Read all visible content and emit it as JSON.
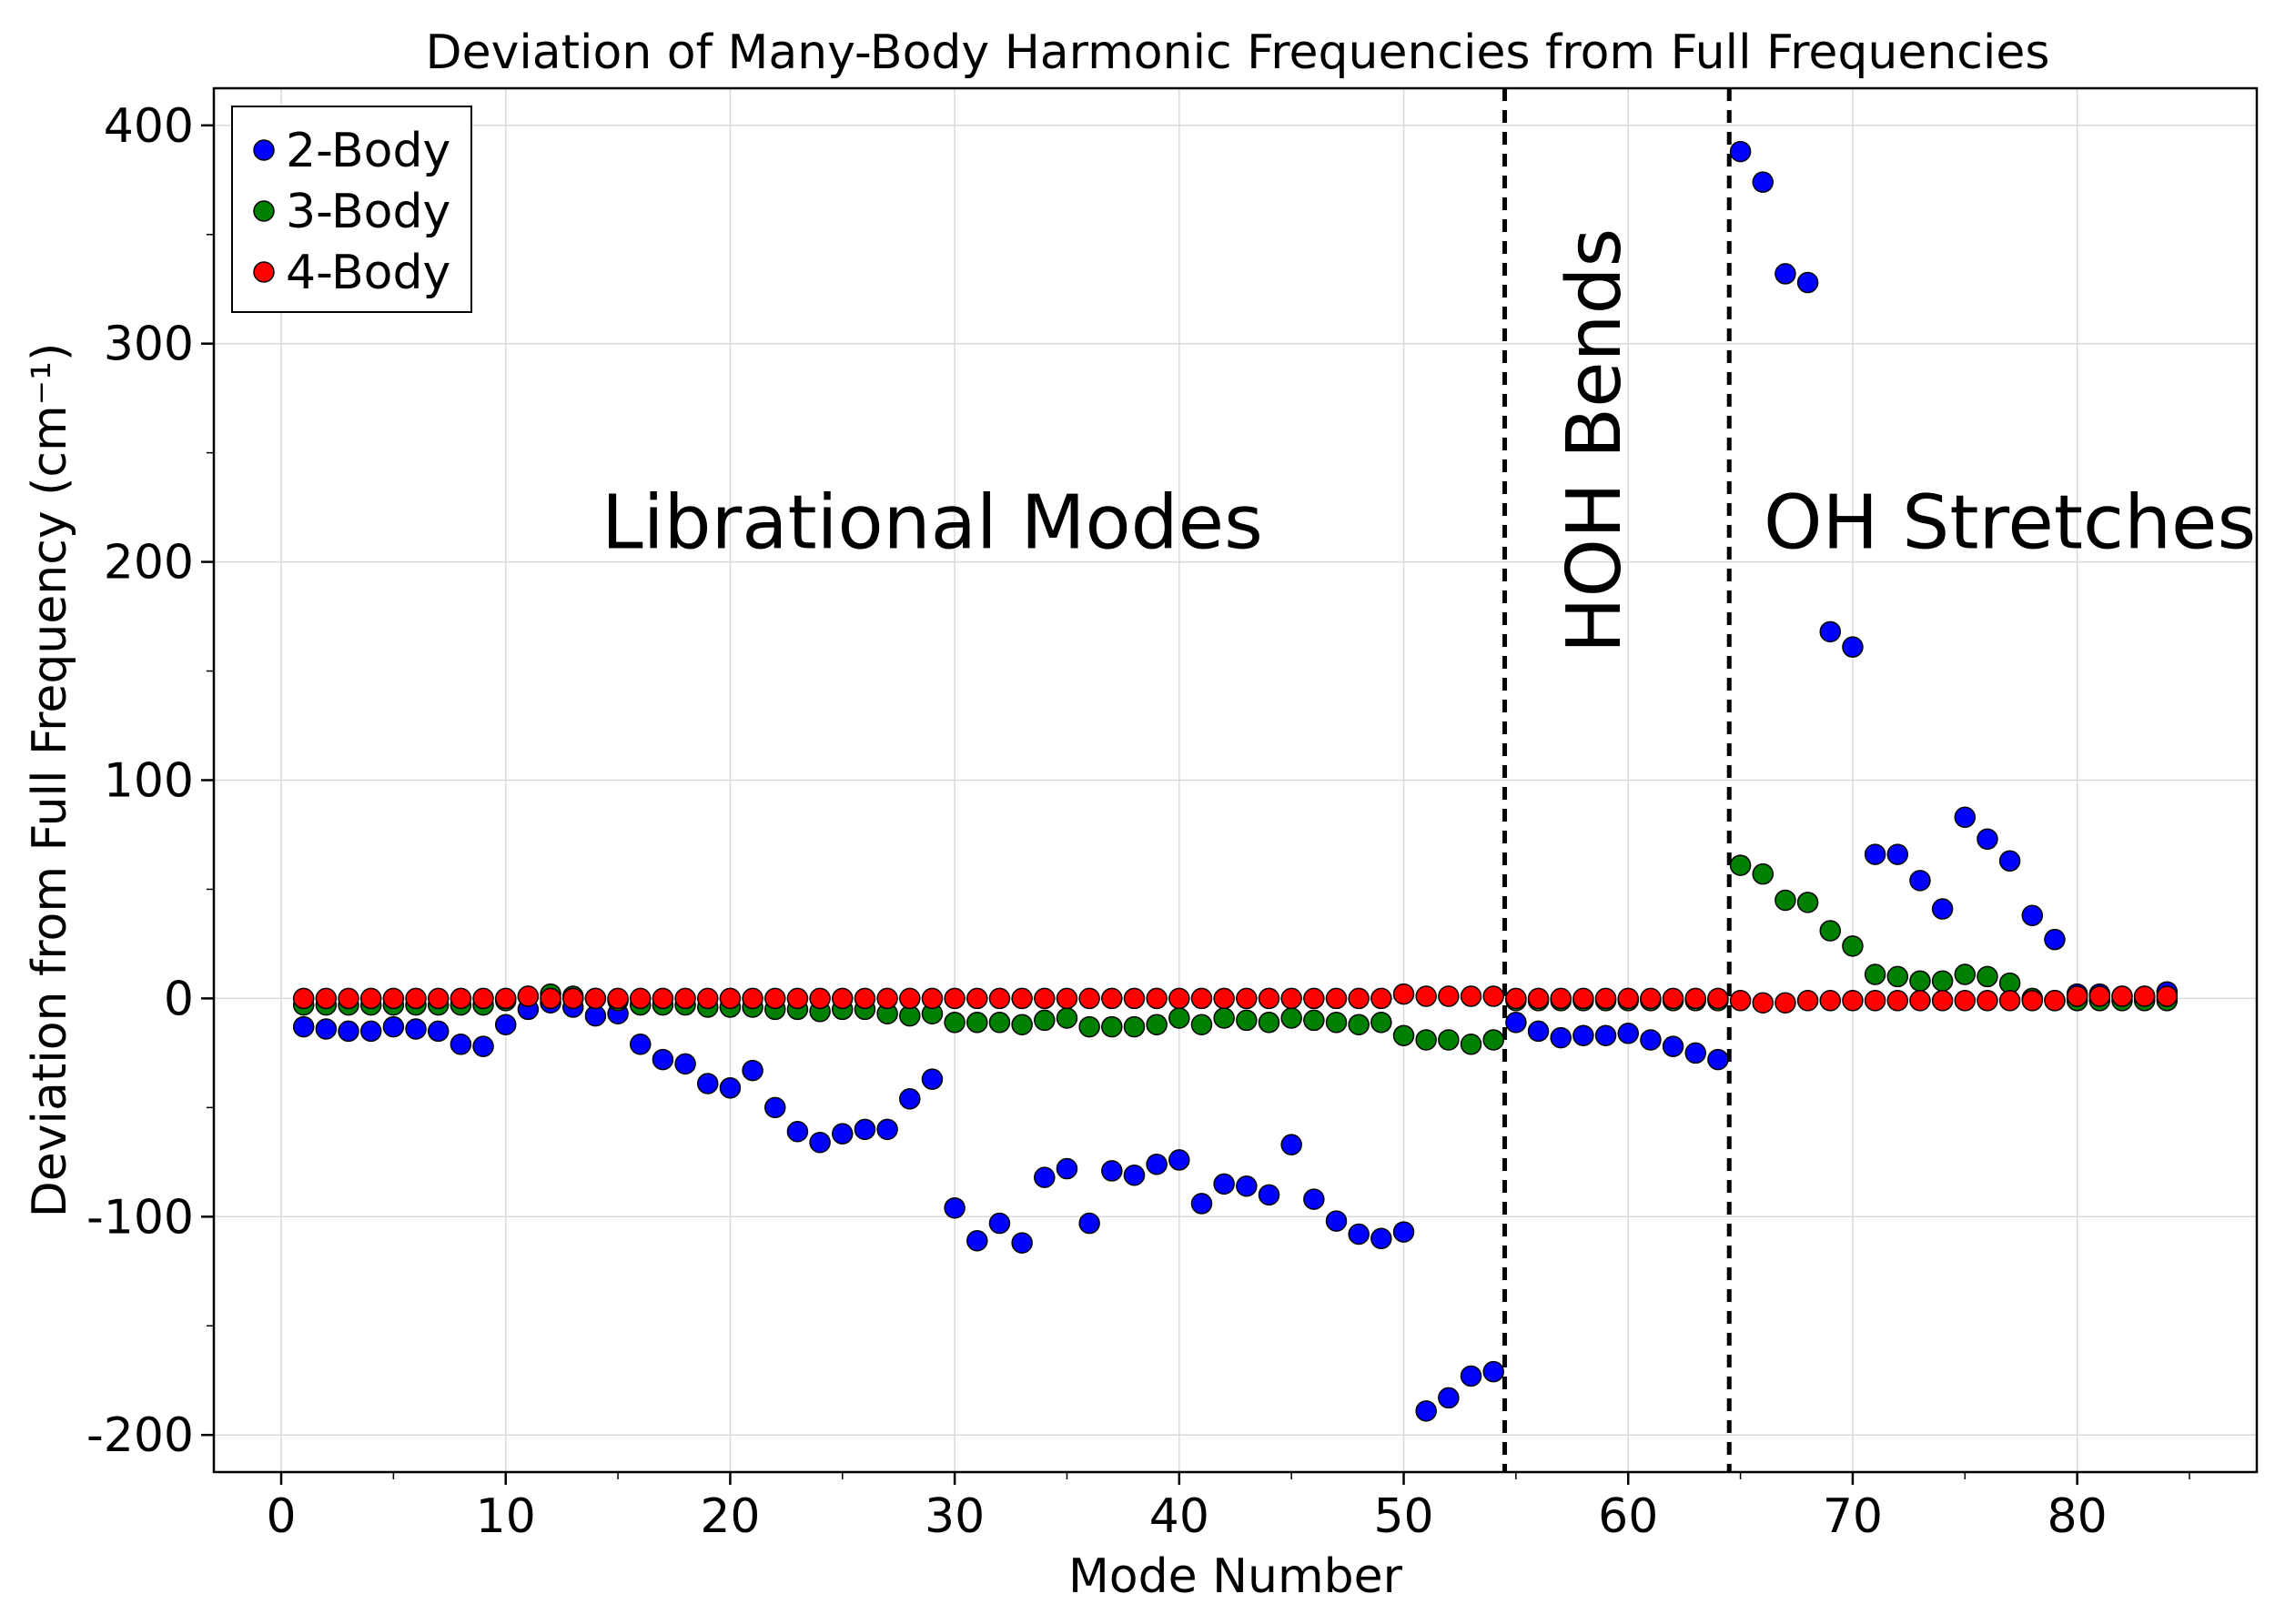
{
  "chart_data": {
    "type": "scatter",
    "title": "Deviation of Many-Body Harmonic Frequencies from Full Frequencies",
    "xlabel": "Mode Number",
    "ylabel": "Deviation from Full Frequency (cm⁻¹)",
    "xlim": [
      -3,
      88
    ],
    "ylim": [
      -217,
      417
    ],
    "xticks": [
      0,
      10,
      20,
      30,
      40,
      50,
      60,
      70,
      80
    ],
    "yticks": [
      -200,
      -100,
      0,
      100,
      200,
      300,
      400
    ],
    "xtick_labels": [
      "0",
      "10",
      "20",
      "30",
      "40",
      "50",
      "60",
      "70",
      "80"
    ],
    "ytick_labels": [
      "-200",
      "-100",
      "0",
      "100",
      "200",
      "300",
      "400"
    ],
    "grid": true,
    "legend_position": "top-left",
    "vlines": [
      54.5,
      64.5
    ],
    "annotations": [
      {
        "text": "Librational Modes",
        "x": 29,
        "y": 218,
        "rotation": 0
      },
      {
        "text": "HOH Bends",
        "x": 58.5,
        "y": 218,
        "rotation": -90
      },
      {
        "text": "OH Stretches",
        "x": 77,
        "y": 218,
        "rotation": 0
      }
    ],
    "series": [
      {
        "name": "2-Body",
        "color": "#0000ff",
        "x": [
          1,
          2,
          3,
          4,
          5,
          6,
          7,
          8,
          9,
          10,
          11,
          12,
          13,
          14,
          15,
          16,
          17,
          18,
          19,
          20,
          21,
          22,
          23,
          24,
          25,
          26,
          27,
          28,
          29,
          30,
          31,
          32,
          33,
          34,
          35,
          36,
          37,
          38,
          39,
          40,
          41,
          42,
          43,
          44,
          45,
          46,
          47,
          48,
          49,
          50,
          51,
          52,
          53,
          54,
          55,
          56,
          57,
          58,
          59,
          60,
          61,
          62,
          63,
          64,
          65,
          66,
          67,
          68,
          69,
          70,
          71,
          72,
          73,
          74,
          75,
          76,
          77,
          78,
          79,
          80,
          81,
          82,
          83,
          84
        ],
        "y": [
          -13,
          -14,
          -15,
          -15,
          -13,
          -14,
          -15,
          -21,
          -22,
          -12,
          -5,
          -2,
          -4,
          -8,
          -7,
          -21,
          -28,
          -30,
          -39,
          -41,
          -33,
          -50,
          -61,
          -66,
          -62,
          -60,
          -60,
          -46,
          -37,
          -96,
          -111,
          -103,
          -112,
          -82,
          -78,
          -103,
          -79,
          -81,
          -76,
          -74,
          -94,
          -85,
          -86,
          -90,
          -67,
          -92,
          -102,
          -108,
          -110,
          -107,
          -189,
          -183,
          -173,
          -171,
          -11,
          -15,
          -18,
          -17,
          -17,
          -16,
          -19,
          -22,
          -25,
          -28,
          388,
          374,
          332,
          328,
          168,
          161,
          66,
          66,
          54,
          41,
          83,
          73,
          63,
          38,
          27,
          2,
          2,
          1,
          1,
          3
        ]
      },
      {
        "name": "3-Body",
        "color": "#008000",
        "x": [
          1,
          2,
          3,
          4,
          5,
          6,
          7,
          8,
          9,
          10,
          11,
          12,
          13,
          14,
          15,
          16,
          17,
          18,
          19,
          20,
          21,
          22,
          23,
          24,
          25,
          26,
          27,
          28,
          29,
          30,
          31,
          32,
          33,
          34,
          35,
          36,
          37,
          38,
          39,
          40,
          41,
          42,
          43,
          44,
          45,
          46,
          47,
          48,
          49,
          50,
          51,
          52,
          53,
          54,
          55,
          56,
          57,
          58,
          59,
          60,
          61,
          62,
          63,
          64,
          65,
          66,
          67,
          68,
          69,
          70,
          71,
          72,
          73,
          74,
          75,
          76,
          77,
          78,
          79,
          80,
          81,
          82,
          83,
          84
        ],
        "y": [
          -3,
          -3,
          -3,
          -3,
          -3,
          -3,
          -3,
          -3,
          -3,
          -1,
          1,
          2,
          1,
          0,
          -1,
          -3,
          -3,
          -3,
          -4,
          -4,
          -4,
          -5,
          -5,
          -6,
          -5,
          -5,
          -7,
          -8,
          -7,
          -11,
          -11,
          -11,
          -12,
          -10,
          -9,
          -13,
          -13,
          -13,
          -12,
          -9,
          -12,
          -9,
          -10,
          -11,
          -9,
          -10,
          -11,
          -12,
          -11,
          -17,
          -19,
          -19,
          -21,
          -19,
          -1,
          -1,
          -1,
          -1,
          -1,
          -1,
          -1,
          -1,
          -1,
          -1,
          61,
          57,
          45,
          44,
          31,
          24,
          11,
          10,
          8,
          8,
          11,
          10,
          7,
          0,
          -1,
          -1,
          -1,
          -1,
          -1,
          -1
        ]
      },
      {
        "name": "4-Body",
        "color": "#ff0000",
        "x": [
          1,
          2,
          3,
          4,
          5,
          6,
          7,
          8,
          9,
          10,
          11,
          12,
          13,
          14,
          15,
          16,
          17,
          18,
          19,
          20,
          21,
          22,
          23,
          24,
          25,
          26,
          27,
          28,
          29,
          30,
          31,
          32,
          33,
          34,
          35,
          36,
          37,
          38,
          39,
          40,
          41,
          42,
          43,
          44,
          45,
          46,
          47,
          48,
          49,
          50,
          51,
          52,
          53,
          54,
          55,
          56,
          57,
          58,
          59,
          60,
          61,
          62,
          63,
          64,
          65,
          66,
          67,
          68,
          69,
          70,
          71,
          72,
          73,
          74,
          75,
          76,
          77,
          78,
          79,
          80,
          81,
          82,
          83,
          84
        ],
        "y": [
          0,
          0,
          0,
          0,
          0,
          0,
          0,
          0,
          0,
          0,
          1,
          0,
          0,
          0,
          0,
          0,
          0,
          0,
          0,
          0,
          0,
          0,
          0,
          0,
          0,
          0,
          0,
          0,
          0,
          0,
          0,
          0,
          0,
          0,
          0,
          0,
          0,
          0,
          0,
          0,
          0,
          0,
          0,
          0,
          0,
          0,
          0,
          0,
          0,
          2,
          1,
          1,
          1,
          1,
          0,
          0,
          0,
          0,
          0,
          0,
          0,
          0,
          0,
          0,
          -1,
          -2,
          -2,
          -1,
          -1,
          -1,
          -1,
          -1,
          -1,
          -1,
          -1,
          -1,
          -1,
          -1,
          -1,
          1,
          1,
          1,
          1,
          1
        ]
      }
    ]
  }
}
